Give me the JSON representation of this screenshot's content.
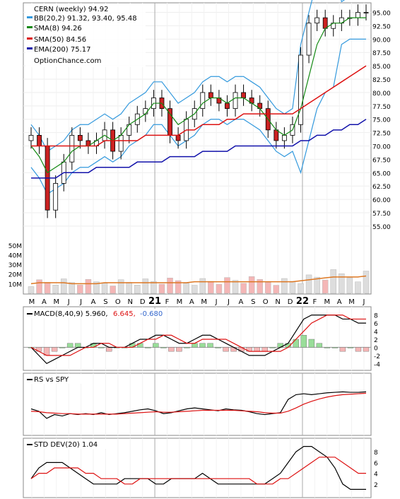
{
  "chart_data": [
    {
      "type": "candlestick",
      "title": "CERN (weekly) 94.92",
      "watermark": "OptionChance.com",
      "ylim": [
        53,
        96
      ],
      "y_ticks": [
        "95.00",
        "92.50",
        "90.00",
        "87.50",
        "85.00",
        "82.50",
        "80.00",
        "77.50",
        "75.00",
        "72.50",
        "70.00",
        "67.50",
        "65.00",
        "62.50",
        "60.00",
        "57.50",
        "55.00"
      ],
      "x_labels": [
        "M",
        "A",
        "M",
        "J",
        "J",
        "A",
        "S",
        "O",
        "N",
        "D",
        "21",
        "F",
        "M",
        "A",
        "M",
        "J",
        "J",
        "A",
        "S",
        "O",
        "N",
        "D",
        "22",
        "F",
        "M",
        "A",
        "M",
        "J"
      ],
      "legend": [
        {
          "label": "BB(20,2) 91.32, 93.40, 95.48",
          "color": "#3399dd"
        },
        {
          "label": "SMA(8) 94.26",
          "color": "#118811"
        },
        {
          "label": "SMA(50) 84.56",
          "color": "#dd1111"
        },
        {
          "label": "EMA(200) 75.17",
          "color": "#1111aa"
        }
      ],
      "close_approx": [
        72,
        70,
        58,
        63,
        67,
        72,
        71,
        70,
        71,
        73,
        69,
        72,
        74,
        76,
        77,
        79,
        77,
        72,
        71,
        75,
        77,
        80,
        79,
        78,
        77,
        80,
        79,
        78,
        77,
        73,
        71,
        72,
        74,
        87,
        93,
        94,
        92,
        93,
        94,
        94,
        95,
        95
      ],
      "sma8_approx": [
        70,
        68,
        65,
        66,
        67,
        69,
        70,
        70,
        71,
        72,
        71,
        72,
        74,
        75,
        76,
        78,
        78,
        76,
        74,
        75,
        76,
        78,
        79,
        79,
        78,
        79,
        79,
        78,
        77,
        75,
        73,
        72,
        73,
        77,
        83,
        89,
        92,
        93,
        93,
        94,
        94,
        94
      ],
      "sma50_approx": [
        70,
        70,
        70,
        70,
        70,
        70,
        70,
        70,
        70,
        71,
        71,
        71,
        71,
        71,
        72,
        72,
        72,
        72,
        72,
        73,
        73,
        74,
        74,
        74,
        75,
        75,
        76,
        76,
        76,
        76,
        76,
        76,
        76,
        77,
        78,
        79,
        80,
        81,
        82,
        83,
        84,
        85
      ],
      "ema200_approx": [
        64,
        64,
        64,
        64,
        65,
        65,
        65,
        65,
        66,
        66,
        66,
        66,
        66,
        67,
        67,
        67,
        67,
        68,
        68,
        68,
        68,
        69,
        69,
        69,
        69,
        70,
        70,
        70,
        70,
        70,
        70,
        70,
        70,
        71,
        71,
        72,
        72,
        73,
        73,
        74,
        74,
        75
      ],
      "volume_axis": [
        "50M",
        "40M",
        "30M",
        "20M",
        "10M"
      ],
      "volume_avg_approx_m": [
        10,
        11,
        11,
        11,
        11,
        10,
        10,
        10,
        10,
        11,
        11,
        11,
        11,
        11,
        11,
        11,
        11,
        11,
        11,
        11,
        12,
        12,
        12,
        12,
        12,
        12,
        12,
        12,
        12,
        12,
        12,
        12,
        12,
        13,
        14,
        15,
        16,
        17,
        17,
        17,
        17,
        18
      ]
    },
    {
      "type": "line",
      "title": "MACD(8,40,9) 5.960, 6.645, -0.680",
      "label_main": "MACD(8,40,9) 5.960,",
      "label_signal": "6.645,",
      "label_hist": "-0.680",
      "ylim": [
        -5,
        9
      ],
      "y_ticks": [
        "8",
        "6",
        "4",
        "2",
        "0",
        "-2",
        "-4"
      ],
      "macd_approx": [
        0,
        -2,
        -4,
        -3,
        -2,
        -1,
        0,
        0,
        1,
        1,
        0,
        0,
        0,
        1,
        2,
        2,
        3,
        3,
        2,
        1,
        1,
        2,
        3,
        3,
        2,
        1,
        0,
        -1,
        -2,
        -2,
        -2,
        -1,
        0,
        1,
        4,
        7,
        8,
        8,
        8,
        8,
        7,
        7,
        6,
        6
      ],
      "signal_approx": [
        0,
        -1,
        -2,
        -2,
        -2,
        -2,
        -1,
        0,
        0,
        1,
        1,
        0,
        0,
        0,
        1,
        2,
        2,
        3,
        3,
        2,
        1,
        1,
        2,
        2,
        2,
        2,
        1,
        0,
        -1,
        -1,
        -1,
        -1,
        -1,
        0,
        2,
        4,
        6,
        7,
        8,
        8,
        8,
        7,
        7,
        7
      ]
    },
    {
      "type": "line",
      "title": "RS vs SPY",
      "rs_approx": [
        50,
        45,
        30,
        38,
        35,
        40,
        38,
        40,
        38,
        42,
        38,
        40,
        42,
        45,
        48,
        50,
        46,
        40,
        42,
        46,
        50,
        52,
        50,
        48,
        46,
        50,
        48,
        47,
        44,
        40,
        38,
        40,
        42,
        70,
        80,
        82,
        80,
        82,
        84,
        85,
        86,
        85,
        85,
        86
      ],
      "rs_ma_approx": [
        45,
        44,
        42,
        41,
        40,
        40,
        39,
        39,
        39,
        39,
        39,
        39,
        40,
        41,
        42,
        43,
        44,
        43,
        43,
        44,
        45,
        46,
        47,
        47,
        47,
        47,
        47,
        46,
        45,
        44,
        42,
        41,
        41,
        45,
        52,
        60,
        66,
        71,
        75,
        78,
        80,
        81,
        82,
        83
      ]
    },
    {
      "type": "line",
      "title": "STD DEV(20) 1.04",
      "ylim": [
        0,
        10
      ],
      "y_ticks": [
        "8",
        "6",
        "4",
        "2"
      ],
      "std_approx": [
        3,
        5,
        6,
        6,
        6,
        5,
        4,
        3,
        2,
        2,
        2,
        2,
        3,
        3,
        3,
        3,
        2,
        2,
        3,
        3,
        3,
        3,
        4,
        3,
        2,
        2,
        2,
        2,
        2,
        2,
        2,
        3,
        4,
        6,
        8,
        9,
        9,
        8,
        7,
        5,
        2,
        1,
        1,
        1
      ],
      "std_ma_approx": [
        3,
        4,
        4,
        5,
        5,
        5,
        5,
        4,
        4,
        3,
        3,
        3,
        2,
        2,
        3,
        3,
        3,
        3,
        3,
        3,
        3,
        3,
        3,
        3,
        3,
        3,
        3,
        3,
        3,
        2,
        2,
        2,
        3,
        3,
        4,
        5,
        6,
        7,
        7,
        7,
        6,
        5,
        4,
        4
      ]
    }
  ]
}
